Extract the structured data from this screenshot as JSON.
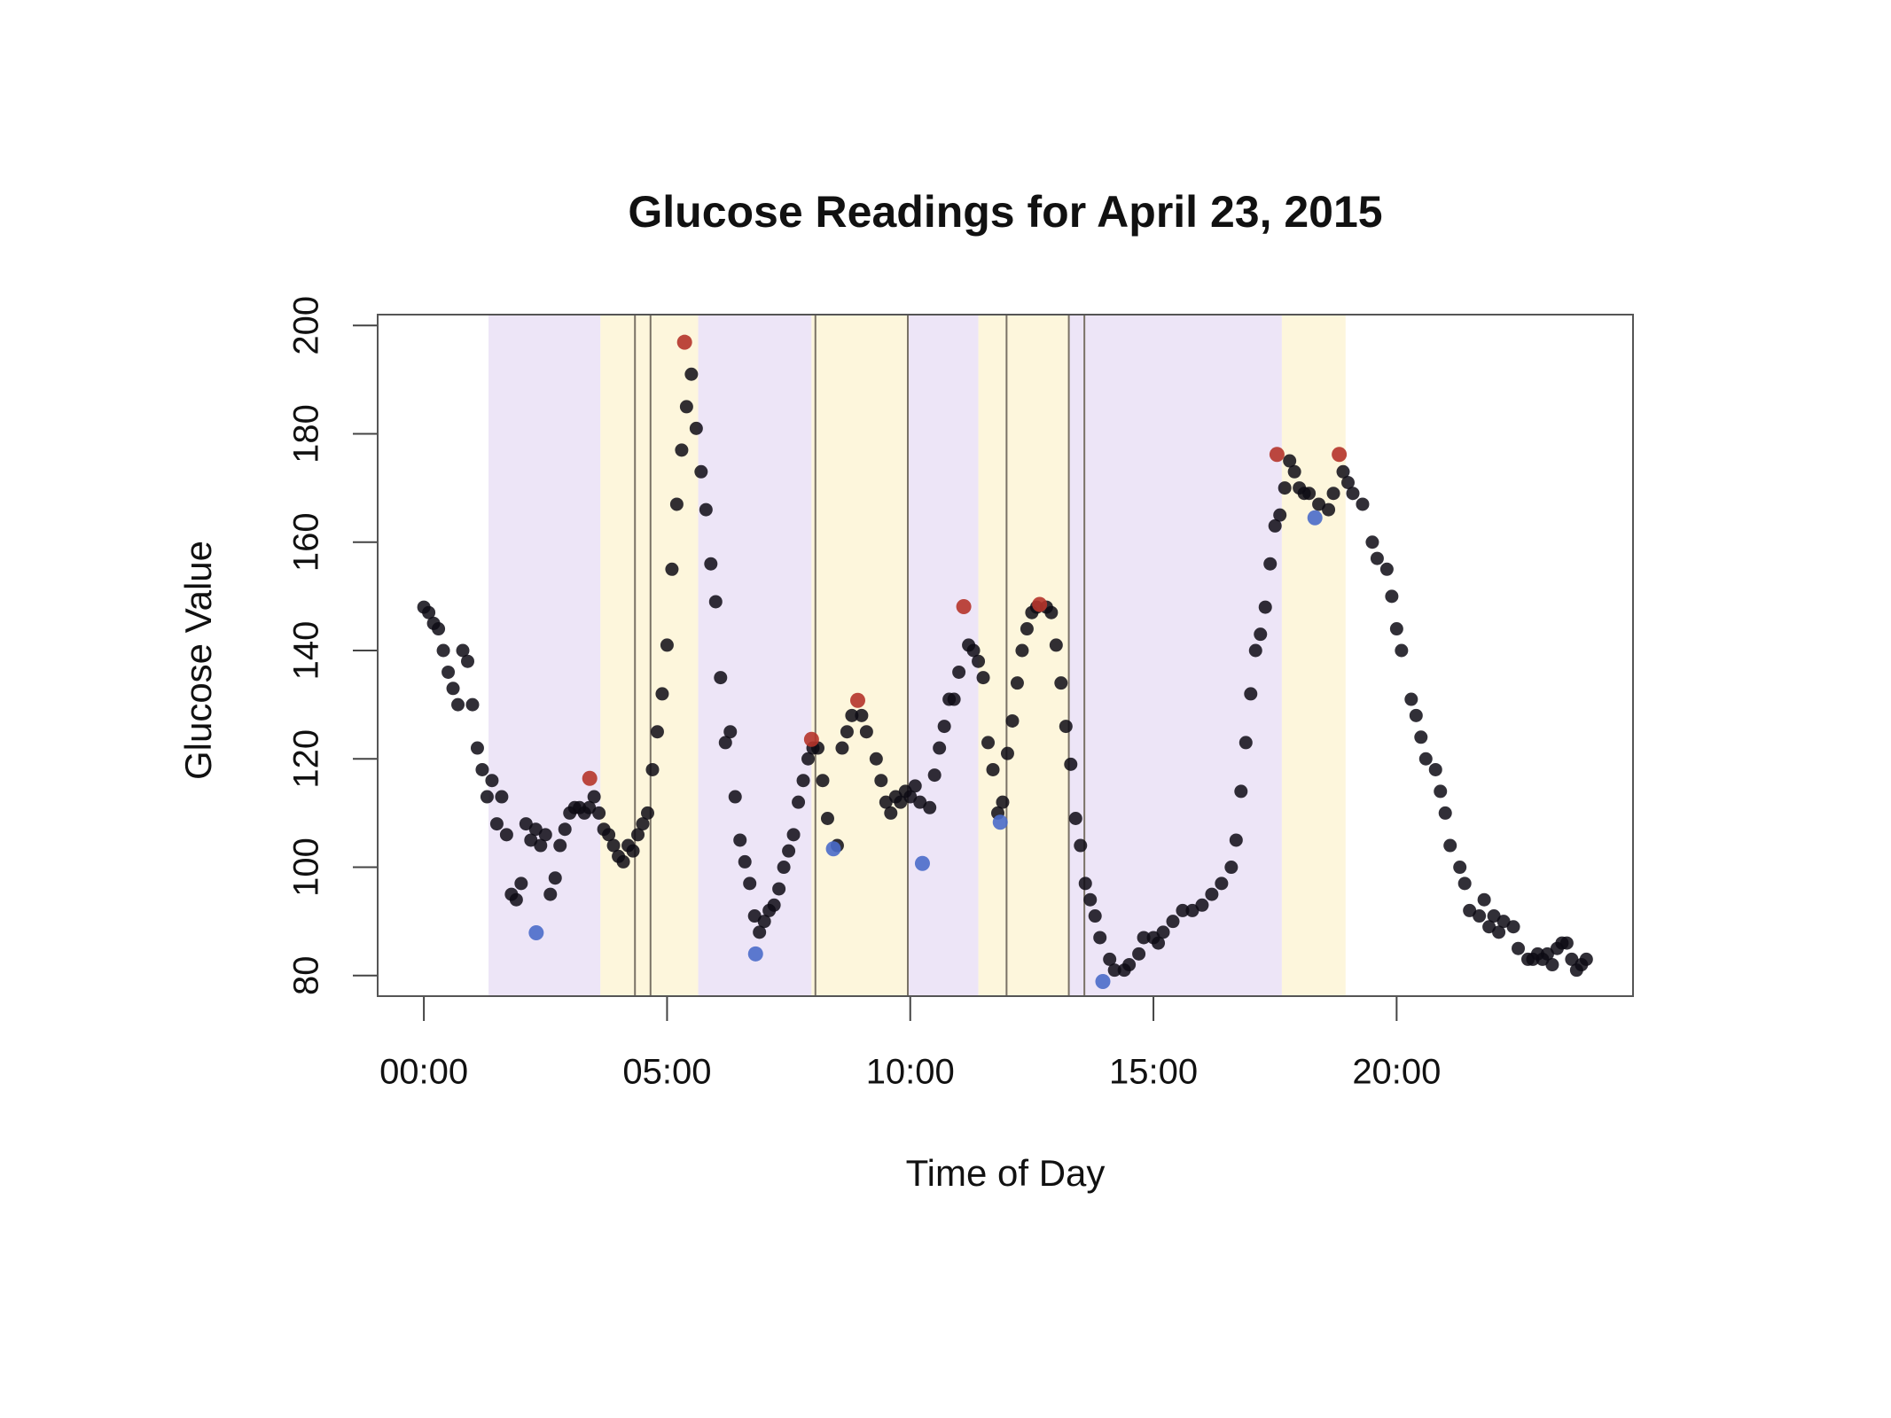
{
  "chart_data": {
    "type": "scatter",
    "title": "Glucose Readings for April 23, 2015",
    "xlabel": "Time of Day",
    "ylabel": "Glucose Value",
    "xlim": [
      -0.95,
      24.86
    ],
    "ylim": [
      76.2,
      202
    ],
    "xticks": [
      {
        "value": 0,
        "label": "00:00"
      },
      {
        "value": 5,
        "label": "05:00"
      },
      {
        "value": 10,
        "label": "10:00"
      },
      {
        "value": 15,
        "label": "15:00"
      },
      {
        "value": 20,
        "label": "20:00"
      }
    ],
    "yticks": [
      80,
      100,
      120,
      140,
      160,
      180,
      200
    ],
    "bands": [
      {
        "start": 1.33,
        "end": 3.63,
        "color": "#ede5f7"
      },
      {
        "start": 3.63,
        "end": 5.64,
        "color": "#fdf6dc"
      },
      {
        "start": 5.64,
        "end": 7.97,
        "color": "#ede5f7"
      },
      {
        "start": 7.97,
        "end": 9.95,
        "color": "#fdf6dc"
      },
      {
        "start": 9.95,
        "end": 11.4,
        "color": "#ede5f7"
      },
      {
        "start": 11.4,
        "end": 13.26,
        "color": "#fdf6dc"
      },
      {
        "start": 13.26,
        "end": 17.64,
        "color": "#ede5f7"
      },
      {
        "start": 17.64,
        "end": 18.95,
        "color": "#fdf6dc"
      }
    ],
    "vlines": [
      4.34,
      4.66,
      8.05,
      9.95,
      11.98,
      13.26,
      13.58
    ],
    "vline_color": "#7a7266",
    "series": [
      {
        "color": "#0d0a14",
        "x": [
          0.0,
          0.1,
          0.2,
          0.3,
          0.4,
          0.5,
          0.6,
          0.7,
          0.8,
          0.9,
          1.0,
          1.1,
          1.2,
          1.3,
          1.4,
          1.5,
          1.6,
          1.7,
          1.8,
          1.9,
          2.0,
          2.1,
          2.2,
          2.3,
          2.4,
          2.5,
          2.6,
          2.7,
          2.8,
          2.9,
          3.0,
          3.1,
          3.2,
          3.3,
          3.4,
          3.5,
          3.6,
          3.7,
          3.8,
          3.9,
          4.0,
          4.1,
          4.2,
          4.3,
          4.4,
          4.5,
          4.6,
          4.7,
          4.8,
          4.9,
          5.0,
          5.1,
          5.2,
          5.3,
          5.4,
          5.5,
          5.6,
          5.7,
          5.8,
          5.9,
          6.0,
          6.1,
          6.2,
          6.3,
          6.4,
          6.5,
          6.6,
          6.7,
          6.8,
          6.9,
          7.0,
          7.1,
          7.2,
          7.3,
          7.4,
          7.5,
          7.6,
          7.7,
          7.8,
          7.9,
          8.0,
          8.1,
          8.2,
          8.3,
          8.5,
          8.6,
          8.7,
          8.8,
          9.0,
          9.1,
          9.3,
          9.4,
          9.5,
          9.6,
          9.7,
          9.8,
          9.9,
          10.0,
          10.1,
          10.2,
          10.4,
          10.5,
          10.6,
          10.7,
          10.8,
          10.9,
          11.0,
          11.2,
          11.3,
          11.4,
          11.5,
          11.6,
          11.7,
          11.8,
          11.9,
          12.0,
          12.1,
          12.2,
          12.3,
          12.4,
          12.5,
          12.6,
          12.8,
          12.9,
          13.0,
          13.1,
          13.2,
          13.3,
          13.4,
          13.5,
          13.6,
          13.7,
          13.8,
          13.9,
          14.1,
          14.2,
          14.4,
          14.5,
          14.7,
          14.8,
          15.0,
          15.1,
          15.2,
          15.4,
          15.6,
          15.8,
          16.0,
          16.2,
          16.4,
          16.6,
          16.7,
          16.8,
          16.9,
          17.0,
          17.1,
          17.2,
          17.3,
          17.4,
          17.5,
          17.6,
          17.7,
          17.8,
          17.9,
          18.0,
          18.1,
          18.2,
          18.4,
          18.6,
          18.7,
          18.9,
          19.0,
          19.1,
          19.3,
          19.5,
          19.6,
          19.8,
          19.9,
          20.0,
          20.1,
          20.3,
          20.4,
          20.5,
          20.6,
          20.8,
          20.9,
          21.0,
          21.1,
          21.3,
          21.4,
          21.5,
          21.7,
          21.8,
          21.9,
          22.0,
          22.1,
          22.2,
          22.4,
          22.5,
          22.7,
          22.8,
          22.9,
          23.0,
          23.1,
          23.2,
          23.3,
          23.4,
          23.5,
          23.6,
          23.7,
          23.8,
          23.9
        ],
        "values": [
          148,
          147,
          145,
          144,
          140,
          136,
          133,
          130,
          140,
          138,
          130,
          122,
          118,
          113,
          116,
          108,
          113,
          106,
          95,
          94,
          97,
          108,
          105,
          107,
          104,
          106,
          95,
          98,
          104,
          107,
          110,
          111,
          111,
          110,
          111,
          113,
          110,
          107,
          106,
          104,
          102,
          101,
          104,
          103,
          106,
          108,
          110,
          118,
          125,
          132,
          141,
          155,
          167,
          177,
          185,
          191,
          181,
          173,
          166,
          156,
          149,
          135,
          123,
          125,
          113,
          105,
          101,
          97,
          91,
          88,
          90,
          92,
          93,
          96,
          100,
          103,
          106,
          112,
          116,
          120,
          122,
          122,
          116,
          109,
          104,
          122,
          125,
          128,
          128,
          125,
          120,
          116,
          112,
          110,
          113,
          112,
          114,
          113,
          115,
          112,
          111,
          117,
          122,
          126,
          131,
          131,
          136,
          141,
          140,
          138,
          135,
          123,
          118,
          110,
          112,
          121,
          127,
          134,
          140,
          144,
          147,
          148,
          148,
          147,
          141,
          134,
          126,
          119,
          109,
          104,
          97,
          94,
          91,
          87,
          83,
          81,
          81,
          82,
          84,
          87,
          87,
          86,
          88,
          90,
          92,
          92,
          93,
          95,
          97,
          100,
          105,
          114,
          123,
          132,
          140,
          143,
          148,
          156,
          163,
          165,
          170,
          175,
          173,
          170,
          169,
          169,
          167,
          166,
          169,
          173,
          171,
          169,
          167,
          160,
          157,
          155,
          150,
          144,
          140,
          131,
          128,
          124,
          120,
          118,
          114,
          110,
          104,
          100,
          97,
          92,
          91,
          94,
          89,
          91,
          88,
          90,
          89,
          85,
          83,
          83,
          84,
          83,
          84,
          82,
          85,
          86,
          86,
          83,
          81,
          82,
          83
        ]
      },
      {
        "color": "#b5342a",
        "x": [
          3.41,
          5.36,
          7.97,
          8.92,
          11.1,
          12.66,
          17.54,
          18.82
        ],
        "values": [
          116.4,
          196.9,
          123.6,
          130.8,
          148.1,
          148.5,
          176.2,
          176.2
        ]
      },
      {
        "color": "#4a6cc9",
        "x": [
          2.31,
          6.82,
          8.42,
          10.25,
          11.85,
          13.96,
          18.32
        ],
        "values": [
          87.9,
          84.0,
          103.4,
          100.7,
          108.3,
          78.9,
          164.5
        ]
      }
    ]
  }
}
